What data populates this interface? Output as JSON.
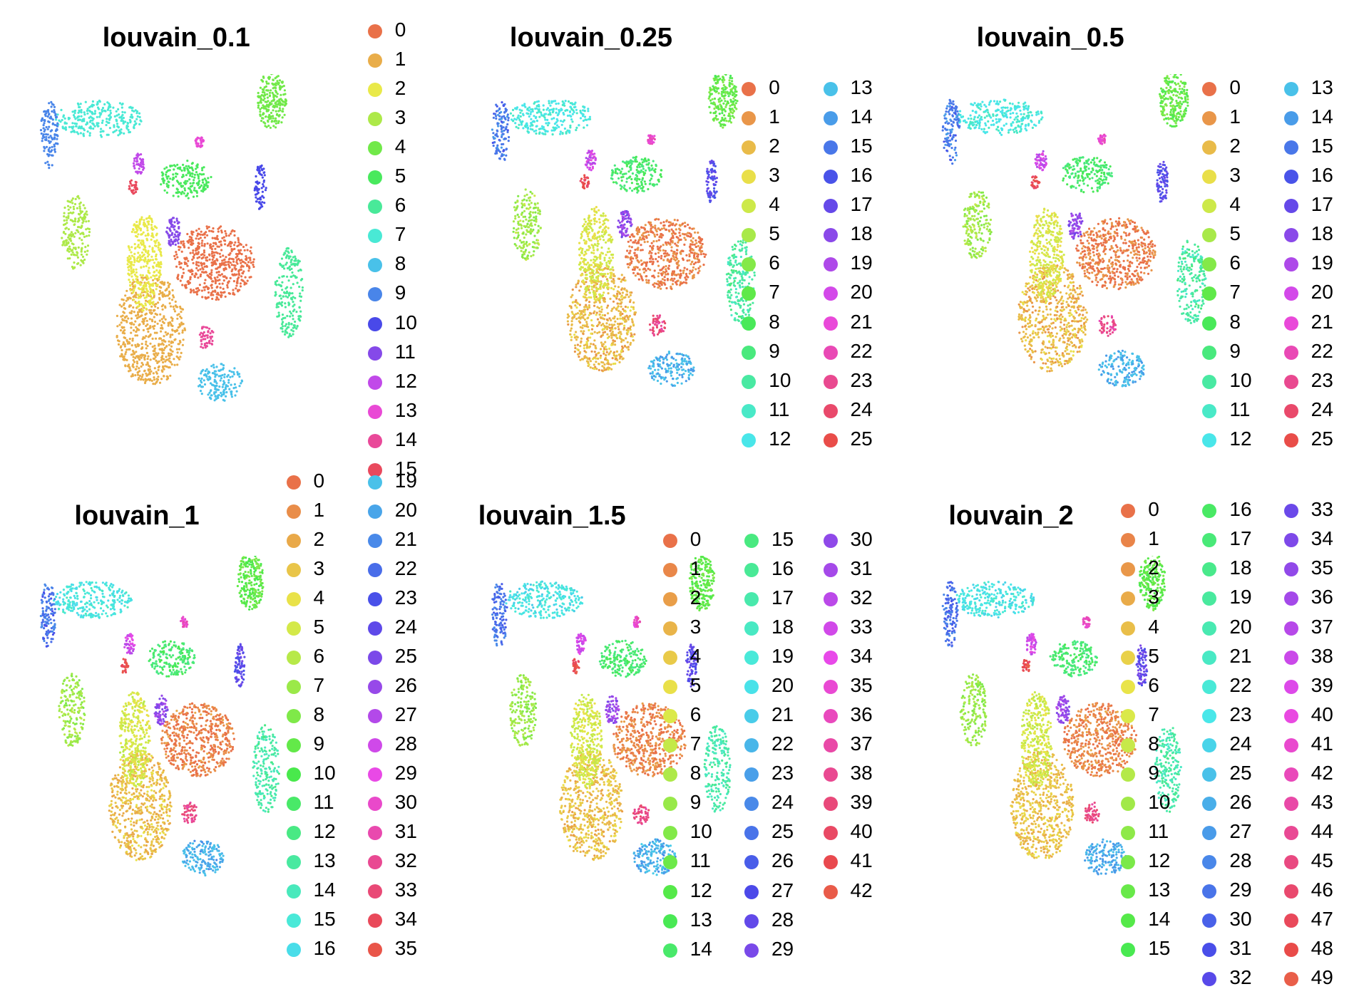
{
  "chart_data": [
    {
      "type": "scatter",
      "title": "louvain_0.1",
      "legend": [
        "0",
        "1",
        "2",
        "3",
        "4",
        "5",
        "6",
        "7",
        "8",
        "9",
        "10",
        "11",
        "12",
        "13",
        "14",
        "15"
      ]
    },
    {
      "type": "scatter",
      "title": "louvain_0.25",
      "legend": [
        "0",
        "1",
        "2",
        "3",
        "4",
        "5",
        "6",
        "7",
        "8",
        "9",
        "10",
        "11",
        "12",
        "13",
        "14",
        "15",
        "16",
        "17",
        "18",
        "19",
        "20",
        "21",
        "22",
        "23",
        "24",
        "25"
      ]
    },
    {
      "type": "scatter",
      "title": "louvain_0.5",
      "legend": [
        "0",
        "1",
        "2",
        "3",
        "4",
        "5",
        "6",
        "7",
        "8",
        "9",
        "10",
        "11",
        "12",
        "13",
        "14",
        "15",
        "16",
        "17",
        "18",
        "19",
        "20",
        "21",
        "22",
        "23",
        "24",
        "25"
      ]
    },
    {
      "type": "scatter",
      "title": "louvain_1",
      "legend": [
        "0",
        "1",
        "2",
        "3",
        "4",
        "5",
        "6",
        "7",
        "8",
        "9",
        "10",
        "11",
        "12",
        "13",
        "14",
        "15",
        "16",
        "19",
        "20",
        "21",
        "22",
        "23",
        "24",
        "25",
        "26",
        "27",
        "28",
        "29",
        "30",
        "31",
        "32",
        "33",
        "34",
        "35"
      ]
    },
    {
      "type": "scatter",
      "title": "louvain_1.5",
      "legend": [
        "0",
        "1",
        "2",
        "3",
        "4",
        "5",
        "6",
        "7",
        "8",
        "9",
        "10",
        "11",
        "12",
        "13",
        "14",
        "15",
        "16",
        "17",
        "18",
        "19",
        "20",
        "21",
        "22",
        "23",
        "24",
        "25",
        "26",
        "27",
        "28",
        "29",
        "30",
        "31",
        "32",
        "33",
        "34",
        "35",
        "36",
        "37",
        "38",
        "39",
        "40",
        "41",
        "42"
      ]
    },
    {
      "type": "scatter",
      "title": "louvain_2",
      "legend": [
        "0",
        "1",
        "2",
        "3",
        "4",
        "5",
        "6",
        "7",
        "8",
        "9",
        "10",
        "11",
        "12",
        "13",
        "14",
        "15",
        "16",
        "17",
        "18",
        "19",
        "20",
        "21",
        "22",
        "23",
        "24",
        "25",
        "26",
        "27",
        "28",
        "29",
        "30",
        "31",
        "32",
        "33",
        "34",
        "35",
        "36",
        "37",
        "38",
        "39",
        "40",
        "41",
        "42",
        "43",
        "44",
        "45",
        "46",
        "47",
        "48",
        "49"
      ]
    }
  ]
}
